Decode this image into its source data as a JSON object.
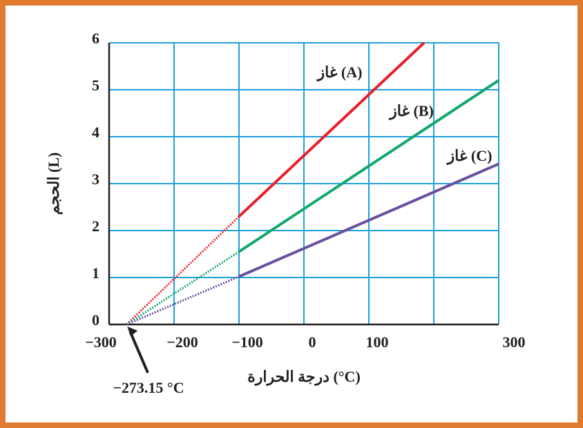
{
  "chart_data": {
    "type": "line",
    "xlabel": "درجة الحرارة (°C)",
    "ylabel": "الحجم (L)",
    "xlim": [
      -300,
      300
    ],
    "ylim": [
      0,
      6
    ],
    "xticks": [
      {
        "value": -300,
        "label": "−300"
      },
      {
        "value": -200,
        "label": "−200"
      },
      {
        "value": -100,
        "label": "−100"
      },
      0,
      100,
      {
        "value": 200,
        "label": null
      },
      300
    ],
    "yticks": [
      0,
      1,
      2,
      3,
      4,
      5,
      6
    ],
    "grid": true,
    "dotted_to": -100,
    "series": [
      {
        "name": "غاز (A)",
        "color": "#e8202a",
        "x": [
          -273.15,
          -100,
          185
        ],
        "values": [
          0,
          2.3,
          6
        ]
      },
      {
        "name": "غاز (B)",
        "color": "#12a86c",
        "x": [
          -273.15,
          -100,
          300
        ],
        "values": [
          0,
          1.55,
          5.2
        ]
      },
      {
        "name": "غاز (C)",
        "color": "#6a4fa0",
        "x": [
          -273.15,
          -100,
          300
        ],
        "values": [
          0,
          1.02,
          3.42
        ]
      }
    ],
    "annotation": {
      "text": "−273.15 °C",
      "x": -273.15
    }
  }
}
